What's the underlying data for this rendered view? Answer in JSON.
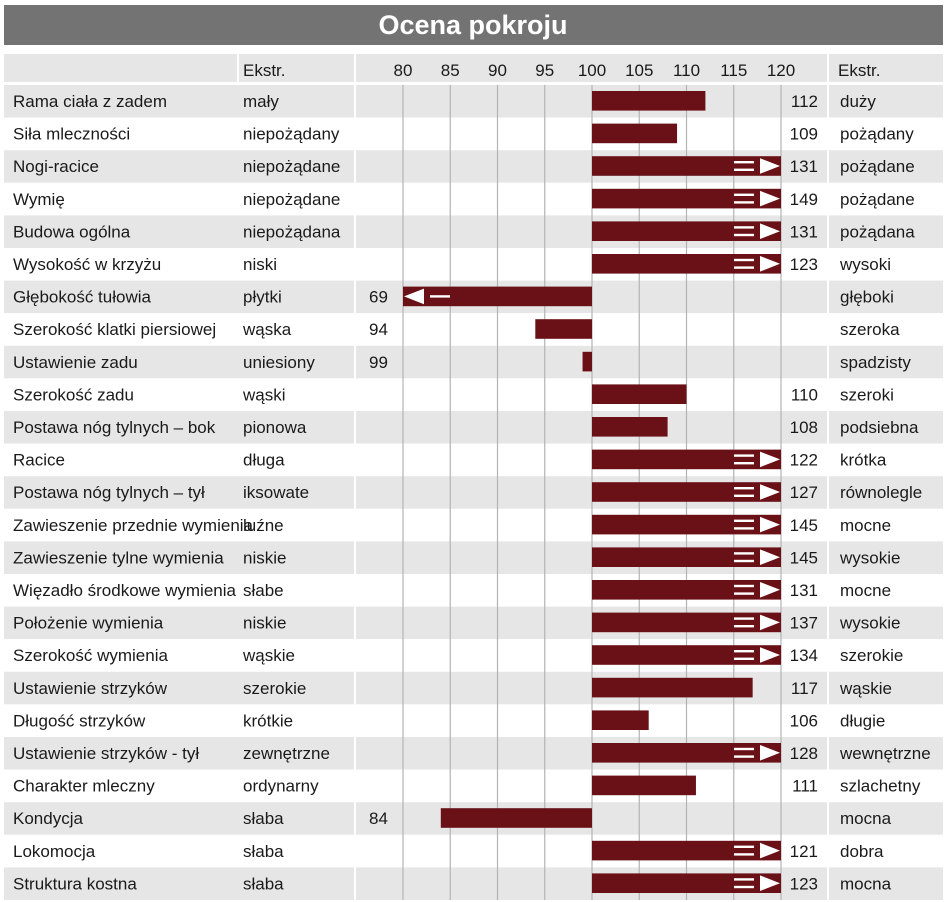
{
  "title": "Ocena pokroju",
  "header": {
    "ext_left": "Ekstr.",
    "ext_right": "Ekstr.",
    "ticks": [
      "80",
      "85",
      "90",
      "95",
      "100",
      "105",
      "110",
      "115",
      "120"
    ]
  },
  "colors": {
    "title_bg": "#737373",
    "row_a": "#e6e6e6",
    "row_b": "#ffffff",
    "bar": "#6a1117",
    "grid": "#b3b3b3"
  },
  "chart_data": {
    "type": "bar",
    "orientation": "horizontal",
    "baseline": 100,
    "xlim": [
      80,
      120
    ],
    "xticks": [
      80,
      85,
      90,
      95,
      100,
      105,
      110,
      115,
      120
    ],
    "grid": true,
    "overflow_marker": "arrow at axis end when value exceeds range",
    "rows": [
      {
        "trait": "Rama ciała z zadem",
        "low": "mały",
        "high": "duży",
        "value": 112
      },
      {
        "trait": "Siła mleczności",
        "low": "niepożądany",
        "high": "pożądany",
        "value": 109
      },
      {
        "trait": "Nogi-racice",
        "low": "niepożądane",
        "high": "pożądane",
        "value": 131
      },
      {
        "trait": "Wymię",
        "low": "niepożądane",
        "high": "pożądane",
        "value": 149
      },
      {
        "trait": "Budowa ogólna",
        "low": "niepożądana",
        "high": "pożądana",
        "value": 131
      },
      {
        "trait": "Wysokość w krzyżu",
        "low": "niski",
        "high": "wysoki",
        "value": 123
      },
      {
        "trait": "Głębokość tułowia",
        "low": "płytki",
        "high": "głęboki",
        "value": 69
      },
      {
        "trait": "Szerokość klatki piersiowej",
        "low": "wąska",
        "high": "szeroka",
        "value": 94
      },
      {
        "trait": "Ustawienie zadu",
        "low": "uniesiony",
        "high": "spadzisty",
        "value": 99
      },
      {
        "trait": "Szerokość zadu",
        "low": "wąski",
        "high": "szeroki",
        "value": 110
      },
      {
        "trait": "Postawa nóg tylnych –  bok",
        "low": "pionowa",
        "high": "podsiebna",
        "value": 108
      },
      {
        "trait": "Racice",
        "low": "długa",
        "high": "krótka",
        "value": 122
      },
      {
        "trait": "Postawa nóg tylnych –  tył",
        "low": "iksowate",
        "high": "równolegle",
        "value": 127
      },
      {
        "trait": "Zawieszenie przednie wymienia",
        "low": "luźne",
        "high": "mocne",
        "value": 145
      },
      {
        "trait": "Zawieszenie tylne wymienia",
        "low": "niskie",
        "high": "wysokie",
        "value": 145
      },
      {
        "trait": "Więzadło środkowe wymienia",
        "low": "słabe",
        "high": "mocne",
        "value": 131
      },
      {
        "trait": "Położenie wymienia",
        "low": "niskie",
        "high": "wysokie",
        "value": 137
      },
      {
        "trait": "Szerokość wymienia",
        "low": "wąskie",
        "high": "szerokie",
        "value": 134
      },
      {
        "trait": "Ustawienie strzyków",
        "low": "szerokie",
        "high": "wąskie",
        "value": 117
      },
      {
        "trait": "Długość strzyków",
        "low": "krótkie",
        "high": "długie",
        "value": 106
      },
      {
        "trait": "Ustawienie strzyków - tył",
        "low": "zewnętrzne",
        "high": "wewnętrzne",
        "value": 128
      },
      {
        "trait": "Charakter mleczny",
        "low": "ordynarny",
        "high": "szlachetny",
        "value": 111
      },
      {
        "trait": "Kondycja",
        "low": "słaba",
        "high": "mocna",
        "value": 84
      },
      {
        "trait": "Lokomocja",
        "low": "słaba",
        "high": "dobra",
        "value": 121
      },
      {
        "trait": "Struktura kostna",
        "low": "słaba",
        "high": "mocna",
        "value": 123
      }
    ]
  }
}
